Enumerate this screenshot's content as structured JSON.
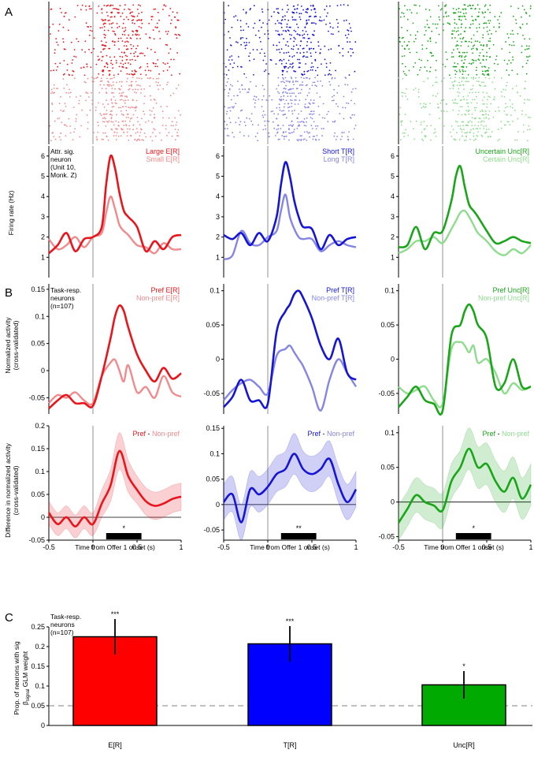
{
  "figure": {
    "panels": [
      "A",
      "B",
      "C"
    ],
    "xlabel": "Time from Offer 1 onset (s)",
    "xticks": [
      "-0.5",
      "0",
      "0.5",
      "1"
    ]
  },
  "notes": {
    "A": [
      "Attr. sig.",
      "neuron",
      "(Unit 10,",
      "Monk. Z)"
    ],
    "B": [
      "Task-resp.",
      "neurons",
      "(n=107)"
    ],
    "C": [
      "Task-resp.",
      "neurons",
      "(n=107)"
    ]
  },
  "ylabels": {
    "firing": "Firing rate (Hz)",
    "norm": [
      "Normalized activity",
      "(cross-validated)"
    ],
    "diff": [
      "Difference in normalized activity",
      "(cross-validated)"
    ],
    "prop": [
      "Prop. of neurons with sig",
      "β",
      "signal",
      " GLM weight"
    ]
  },
  "columns": [
    {
      "key": "E",
      "colors": {
        "dark": "#e8161c",
        "light": "#f08b8d",
        "raster_dark": "#e8161c",
        "raster_light": "#f08b8d"
      },
      "legend_A": [
        "Large E[R]",
        "Small E[R]"
      ],
      "legend_B": [
        "Pref E[R]",
        "Non-pref E[R]"
      ],
      "legend_diff": [
        "Pref",
        " - ",
        "Non-pref"
      ],
      "sig_stars": "*"
    },
    {
      "key": "T",
      "colors": {
        "dark": "#1515d6",
        "light": "#8585e6",
        "raster_dark": "#1515d6",
        "raster_light": "#8585e6"
      },
      "legend_A": [
        "Short T[R]",
        "Long T[R]"
      ],
      "legend_B": [
        "Pref T[R]",
        "Non-pref T[R]"
      ],
      "legend_diff": [
        "Pref",
        " - ",
        "Non-pref"
      ],
      "sig_stars": "**"
    },
    {
      "key": "Unc",
      "colors": {
        "dark": "#1aa51a",
        "light": "#8fdc8f",
        "raster_dark": "#1aa51a",
        "raster_light": "#8fdc8f"
      },
      "legend_A": [
        "Uncertain Unc[R]",
        "Certain Unc[R]"
      ],
      "legend_B": [
        "Pref Unc[R]",
        "Non-pref Unc[R]"
      ],
      "legend_diff": [
        "Pref",
        " - ",
        "Non-pref"
      ],
      "sig_stars": "*"
    }
  ],
  "chart_data": [
    {
      "type": "line",
      "panel": "A-firing-rate",
      "ylabel": "Firing rate (Hz)",
      "xlim": [
        -0.5,
        1
      ],
      "ylim": [
        0,
        6.5
      ],
      "xticks": [
        -0.5,
        0,
        0.5,
        1
      ],
      "yticks": [
        1,
        2,
        3,
        4,
        5,
        6
      ],
      "ytick_labels": [
        "1",
        "2",
        "3",
        "4",
        "5",
        "6"
      ],
      "vline_at": 0,
      "x": [
        -0.5,
        -0.4,
        -0.3,
        -0.2,
        -0.1,
        0.0,
        0.1,
        0.15,
        0.2,
        0.25,
        0.3,
        0.35,
        0.4,
        0.5,
        0.6,
        0.7,
        0.8,
        0.9,
        1.0
      ],
      "series": [
        [
          {
            "name": "Large E[R]",
            "values": [
              1.2,
              1.6,
              2.2,
              1.3,
              1.9,
              2.0,
              2.5,
              4.6,
              6.0,
              5.4,
              4.2,
              3.3,
              3.0,
              2.5,
              1.3,
              1.8,
              1.4,
              2.0,
              2.1
            ]
          },
          {
            "name": "Small E[R]",
            "values": [
              1.9,
              1.4,
              1.6,
              2.0,
              1.5,
              2.0,
              2.2,
              3.2,
              4.0,
              3.4,
              2.6,
              2.3,
              2.1,
              1.6,
              1.5,
              1.2,
              1.7,
              1.4,
              1.4
            ]
          }
        ],
        [
          {
            "name": "Short T[R]",
            "values": [
              2.1,
              1.9,
              2.2,
              1.6,
              2.2,
              1.8,
              3.0,
              4.6,
              5.7,
              5.0,
              3.8,
              3.0,
              2.5,
              2.4,
              1.4,
              2.1,
              1.6,
              1.9,
              2.0
            ]
          },
          {
            "name": "Long T[R]",
            "values": [
              0.9,
              1.1,
              2.3,
              1.7,
              1.6,
              2.0,
              2.3,
              3.3,
              4.1,
              3.0,
              2.4,
              2.0,
              1.9,
              1.9,
              1.3,
              1.6,
              1.8,
              1.6,
              1.5
            ]
          }
        ],
        [
          {
            "name": "Uncertain Unc[R]",
            "values": [
              1.5,
              1.6,
              2.5,
              1.4,
              2.2,
              2.3,
              3.8,
              5.0,
              5.5,
              4.5,
              3.6,
              3.3,
              3.0,
              2.3,
              1.7,
              1.8,
              2.0,
              1.8,
              1.7
            ]
          },
          {
            "name": "Certain Unc[R]",
            "values": [
              1.2,
              1.4,
              1.8,
              1.8,
              2.0,
              1.7,
              2.4,
              2.8,
              3.2,
              3.3,
              3.0,
              2.6,
              2.2,
              1.8,
              1.3,
              1.1,
              1.4,
              1.2,
              1.6
            ]
          }
        ]
      ]
    },
    {
      "type": "line",
      "panel": "B-normalized-activity",
      "ylabel": "Normalized activity (cross-validated)",
      "xlim": [
        -0.5,
        1
      ],
      "ylim": [
        [
          -0.08,
          0.16
        ],
        [
          -0.08,
          0.11
        ],
        [
          -0.08,
          0.11
        ]
      ],
      "yticks": [
        [
          -0.05,
          0,
          0.05,
          0.1,
          0.15
        ],
        [
          -0.05,
          0,
          0.05,
          0.1
        ],
        [
          -0.05,
          0,
          0.05,
          0.1
        ]
      ],
      "ytick_labels": [
        [
          "-0.05",
          "0",
          "0.05",
          "0.1",
          "0.15"
        ],
        [
          "-0.05",
          "0",
          "0.05",
          "0.1"
        ],
        [
          "-0.05",
          "0",
          "0.05",
          "0.1"
        ]
      ],
      "vline_at": 0,
      "x": [
        -0.5,
        -0.4,
        -0.3,
        -0.2,
        -0.1,
        0.0,
        0.1,
        0.2,
        0.25,
        0.3,
        0.35,
        0.4,
        0.5,
        0.6,
        0.7,
        0.8,
        0.9,
        1.0
      ],
      "series": [
        [
          {
            "name": "Pref E[R]",
            "values": [
              -0.07,
              -0.055,
              -0.045,
              -0.06,
              -0.06,
              -0.065,
              -0.01,
              0.06,
              0.1,
              0.12,
              0.11,
              0.08,
              0.03,
              0.0,
              -0.02,
              0.005,
              -0.015,
              -0.005
            ]
          },
          {
            "name": "Non-pref E[R]",
            "values": [
              -0.06,
              -0.045,
              -0.05,
              -0.04,
              -0.055,
              -0.06,
              -0.01,
              0.015,
              0.02,
              0.0,
              -0.02,
              0.01,
              -0.04,
              -0.03,
              -0.05,
              -0.01,
              -0.04,
              -0.048
            ]
          }
        ],
        [
          {
            "name": "Pref T[R]",
            "values": [
              -0.07,
              -0.055,
              -0.03,
              -0.06,
              -0.06,
              -0.065,
              0.04,
              0.07,
              0.08,
              0.095,
              0.1,
              0.09,
              0.06,
              0.02,
              0.0,
              0.03,
              -0.02,
              -0.03
            ]
          },
          {
            "name": "Non-pref T[R]",
            "values": [
              -0.06,
              -0.045,
              -0.035,
              -0.03,
              -0.04,
              -0.05,
              0.005,
              0.015,
              0.02,
              0.01,
              0.0,
              -0.01,
              -0.04,
              -0.075,
              -0.03,
              0.0,
              -0.02,
              -0.04
            ]
          }
        ],
        [
          {
            "name": "Pref Unc[R]",
            "values": [
              -0.07,
              -0.055,
              -0.04,
              -0.06,
              -0.065,
              -0.075,
              0.035,
              0.05,
              0.07,
              0.08,
              0.07,
              0.05,
              0.03,
              -0.04,
              -0.035,
              0.0,
              -0.04,
              -0.04
            ]
          },
          {
            "name": "Non-pref Unc[R]",
            "values": [
              -0.04,
              -0.05,
              -0.045,
              -0.04,
              -0.06,
              -0.065,
              0.015,
              0.025,
              0.02,
              0.01,
              0.02,
              -0.005,
              0.0,
              -0.02,
              -0.05,
              -0.035,
              -0.045,
              -0.04
            ]
          }
        ]
      ]
    },
    {
      "type": "line",
      "panel": "B-difference",
      "ylabel": "Difference in normalized activity (cross-validated)",
      "xlabel": "Time from Offer 1 onset (s)",
      "xlim": [
        -0.5,
        1
      ],
      "ylim": [
        [
          -0.05,
          0.2
        ],
        [
          -0.07,
          0.155
        ],
        [
          -0.055,
          0.11
        ]
      ],
      "yticks": [
        [
          -0.05,
          0,
          0.05,
          0.1,
          0.15,
          0.2
        ],
        [
          -0.05,
          0,
          0.05,
          0.1,
          0.15
        ],
        [
          -0.05,
          0,
          0.05,
          0.1
        ]
      ],
      "ytick_labels": [
        [
          "-0.05",
          "0",
          "0.05",
          "0.1",
          "0.15",
          "0.2"
        ],
        [
          "-0.05",
          "0",
          "0.05",
          "0.1",
          "0.15"
        ],
        [
          "-0.05",
          "0",
          "0.05",
          "0.1"
        ]
      ],
      "vline_at": 0,
      "x": [
        -0.5,
        -0.4,
        -0.3,
        -0.2,
        -0.1,
        0.0,
        0.1,
        0.2,
        0.3,
        0.4,
        0.5,
        0.6,
        0.7,
        0.8,
        0.9,
        1.0
      ],
      "series": [
        {
          "name": "Pref - Non-pref (E[R])",
          "values": [
            0.01,
            -0.015,
            0.0,
            -0.02,
            0.0,
            -0.015,
            0.03,
            0.07,
            0.145,
            0.09,
            0.06,
            0.035,
            0.025,
            0.03,
            0.04,
            0.045
          ],
          "band": [
            0.025,
            0.025,
            0.025,
            0.025,
            0.025,
            0.025,
            0.03,
            0.035,
            0.04,
            0.035,
            0.03,
            0.03,
            0.03,
            0.03,
            0.03,
            0.03
          ]
        },
        {
          "name": "Pref - Non-pref (T[R])",
          "values": [
            0.005,
            0.02,
            -0.035,
            0.03,
            0.02,
            0.035,
            0.06,
            0.07,
            0.1,
            0.07,
            0.06,
            0.07,
            0.09,
            0.04,
            0.005,
            0.03
          ],
          "band": [
            0.035,
            0.035,
            0.035,
            0.035,
            0.035,
            0.035,
            0.035,
            0.035,
            0.04,
            0.035,
            0.035,
            0.035,
            0.035,
            0.035,
            0.035,
            0.035
          ]
        },
        {
          "name": "Pref - Non-pref (Unc[R])",
          "values": [
            -0.03,
            -0.01,
            0.01,
            0.0,
            -0.005,
            -0.012,
            0.03,
            0.05,
            0.077,
            0.05,
            0.055,
            0.03,
            0.015,
            0.035,
            0.005,
            0.025
          ],
          "band": [
            0.025,
            0.025,
            0.025,
            0.025,
            0.025,
            0.025,
            0.025,
            0.025,
            0.03,
            0.03,
            0.03,
            0.03,
            0.03,
            0.03,
            0.03,
            0.03
          ]
        }
      ],
      "sig_windows": [
        [
          0.15,
          0.55
        ],
        [
          0.15,
          0.55
        ],
        [
          0.15,
          0.55
        ]
      ],
      "sig_labels": [
        "*",
        "**",
        "*"
      ]
    },
    {
      "type": "bar",
      "panel": "C",
      "ylabel": "Prop. of neurons with sig β_signal GLM weight",
      "categories": [
        "E[R]",
        "T[R]",
        "Unc[R]"
      ],
      "values": [
        0.225,
        0.207,
        0.103
      ],
      "errors": [
        0.045,
        0.045,
        0.035
      ],
      "significance": [
        "***",
        "***",
        "*"
      ],
      "colors": [
        "#ff0000",
        "#0000ff",
        "#00aa00"
      ],
      "ylim": [
        0,
        0.25
      ],
      "yticks": [
        0,
        0.05,
        0.1,
        0.15,
        0.2,
        0.25
      ],
      "ytick_labels": [
        "0",
        "0.05",
        "0.1",
        "0.15",
        "0.2",
        "0.25"
      ],
      "reference_line": 0.05
    }
  ]
}
